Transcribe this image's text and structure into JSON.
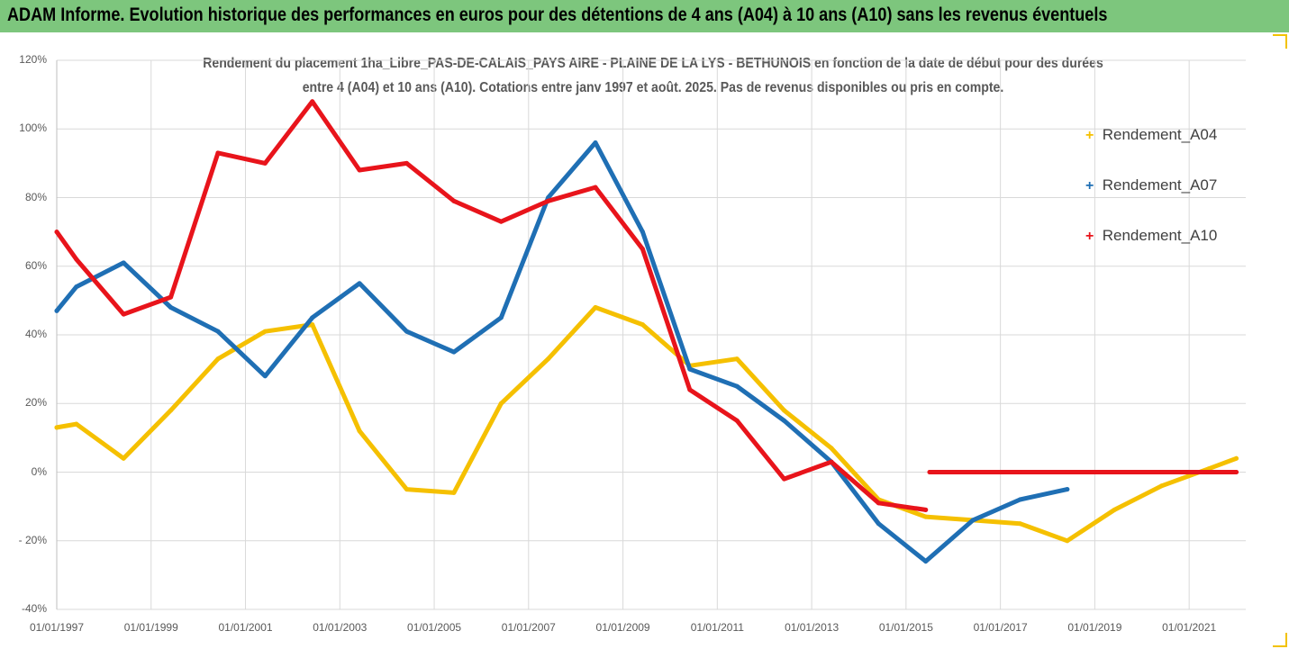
{
  "banner": {
    "title": "ADAM Informe. Evolution historique des performances en euros pour des détentions de 4 ans (A04) à 10 ans (A10) sans les revenus éventuels",
    "color": "#7dc67d"
  },
  "chart_data": {
    "type": "line",
    "title_line1": "Rendement du placement 1ha_Libre_PAS-DE-CALAIS_PAYS AIRE - PLAINE DE LA LYS - BETHUNOIS en fonction de la date de début pour des durées",
    "title_line2": "entre 4 (A04) et 10 ans (A10). Cotations entre janv 1997 et août. 2025. Pas de revenus disponibles ou pris en compte.",
    "xlabel": "",
    "ylabel": "",
    "ylim": [
      -0.4,
      1.2
    ],
    "yticks": [
      "-40%",
      "- 20%",
      "0%",
      "20%",
      "40%",
      "60%",
      "80%",
      "100%",
      "120%"
    ],
    "xticks": [
      "01/01/1997",
      "01/01/1999",
      "01/01/2001",
      "01/01/2003",
      "01/01/2005",
      "01/01/2007",
      "01/01/2009",
      "01/01/2011",
      "01/01/2013",
      "01/01/2015",
      "01/01/2017",
      "01/01/2019",
      "01/01/2021"
    ],
    "grid": true,
    "legend_position": "right",
    "series": [
      {
        "name": "Rendement_A04",
        "color": "#f5c000",
        "points": [
          [
            "1997-01",
            0.13
          ],
          [
            "1997-06",
            0.14
          ],
          [
            "1998-06",
            0.04
          ],
          [
            "1999-06",
            0.18
          ],
          [
            "2000-06",
            0.33
          ],
          [
            "2001-06",
            0.41
          ],
          [
            "2002-06",
            0.43
          ],
          [
            "2003-06",
            0.12
          ],
          [
            "2004-06",
            -0.05
          ],
          [
            "2005-06",
            -0.06
          ],
          [
            "2006-06",
            0.2
          ],
          [
            "2007-06",
            0.33
          ],
          [
            "2008-06",
            0.48
          ],
          [
            "2009-06",
            0.43
          ],
          [
            "2010-06",
            0.31
          ],
          [
            "2011-06",
            0.33
          ],
          [
            "2012-06",
            0.18
          ],
          [
            "2013-06",
            0.07
          ],
          [
            "2014-06",
            -0.08
          ],
          [
            "2015-06",
            -0.13
          ],
          [
            "2016-06",
            -0.14
          ],
          [
            "2017-06",
            -0.15
          ],
          [
            "2018-06",
            -0.2
          ],
          [
            "2019-06",
            -0.11
          ],
          [
            "2020-06",
            -0.04
          ],
          [
            "2021-06",
            0.01
          ],
          [
            "2022-01",
            0.04
          ]
        ]
      },
      {
        "name": "Rendement_A07",
        "color": "#1f6fb4",
        "points": [
          [
            "1997-01",
            0.47
          ],
          [
            "1997-06",
            0.54
          ],
          [
            "1998-06",
            0.61
          ],
          [
            "1999-06",
            0.48
          ],
          [
            "2000-06",
            0.41
          ],
          [
            "2001-06",
            0.28
          ],
          [
            "2002-06",
            0.45
          ],
          [
            "2003-06",
            0.55
          ],
          [
            "2004-06",
            0.41
          ],
          [
            "2005-06",
            0.35
          ],
          [
            "2006-06",
            0.45
          ],
          [
            "2007-06",
            0.8
          ],
          [
            "2008-06",
            0.96
          ],
          [
            "2009-06",
            0.7
          ],
          [
            "2010-06",
            0.3
          ],
          [
            "2011-06",
            0.25
          ],
          [
            "2012-06",
            0.15
          ],
          [
            "2013-06",
            0.03
          ],
          [
            "2014-06",
            -0.15
          ],
          [
            "2015-06",
            -0.26
          ],
          [
            "2016-06",
            -0.14
          ],
          [
            "2017-06",
            -0.08
          ],
          [
            "2018-06",
            -0.05
          ]
        ]
      },
      {
        "name": "Rendement_A10",
        "color": "#e8141b",
        "points": [
          [
            "1997-01",
            0.7
          ],
          [
            "1997-06",
            0.62
          ],
          [
            "1998-06",
            0.46
          ],
          [
            "1999-06",
            0.51
          ],
          [
            "2000-06",
            0.93
          ],
          [
            "2001-06",
            0.9
          ],
          [
            "2002-06",
            1.08
          ],
          [
            "2003-06",
            0.88
          ],
          [
            "2004-06",
            0.9
          ],
          [
            "2005-06",
            0.79
          ],
          [
            "2006-06",
            0.73
          ],
          [
            "2007-06",
            0.79
          ],
          [
            "2008-06",
            0.83
          ],
          [
            "2009-06",
            0.65
          ],
          [
            "2010-06",
            0.24
          ],
          [
            "2011-06",
            0.15
          ],
          [
            "2012-06",
            -0.02
          ],
          [
            "2013-06",
            0.03
          ],
          [
            "2014-06",
            -0.09
          ],
          [
            "2015-06",
            -0.11
          ],
          [
            "2015-07",
            0.0
          ],
          [
            "2016-06",
            0.0
          ],
          [
            "2017-06",
            0.0
          ],
          [
            "2018-06",
            0.0
          ],
          [
            "2019-06",
            0.0
          ],
          [
            "2020-06",
            0.0
          ],
          [
            "2021-06",
            0.0
          ],
          [
            "2022-01",
            0.0
          ]
        ]
      }
    ]
  },
  "gridline_color": "#d9d9d9",
  "corner_color": "#f2c200"
}
